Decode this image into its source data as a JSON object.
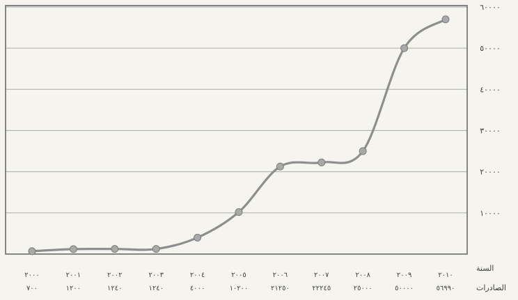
{
  "chart_data": {
    "type": "line",
    "title": "",
    "xlabel": "",
    "ylabel": "",
    "ylim": [
      0,
      60000
    ],
    "yticks": [
      10000,
      20000,
      30000,
      40000,
      50000,
      60000
    ],
    "ytick_labels": [
      "١٠٠٠٠",
      "٢٠٠٠٠",
      "٣٠٠٠٠",
      "٤٠٠٠٠",
      "٥٠٠٠٠",
      "٦٠٠٠٠"
    ],
    "grid": true,
    "legend": "none",
    "row_labels": {
      "years": "السنة",
      "values": "الصادرات"
    },
    "categories": [
      "٢٠٠٠",
      "٢٠٠١",
      "٢٠٠٢",
      "٢٠٠٣",
      "٢٠٠٤",
      "٢٠٠٥",
      "٢٠٠٦",
      "٢٠٠٧",
      "٢٠٠٨",
      "٢٠٠٩",
      "٢٠١٠"
    ],
    "value_labels": [
      "٧٠٠",
      "١٢٠٠",
      "١٢٤٠",
      "١٢٤٠",
      "٤٠٠٠",
      "١٠٢٠٠",
      "٢١٢٥٠",
      "٢٢٢٤٥",
      "٢٥٠٠٠",
      "٥٠٠٠٠",
      "٥٦٩٩٠"
    ],
    "values": [
      700,
      1200,
      1240,
      1240,
      4000,
      10200,
      21250,
      22245,
      25000,
      50000,
      56990
    ],
    "colors": {
      "line": "#8e8e8e",
      "marker": "#a9a9a9",
      "grid": "#b4b4b4",
      "frame": "#6b6b6b"
    }
  }
}
